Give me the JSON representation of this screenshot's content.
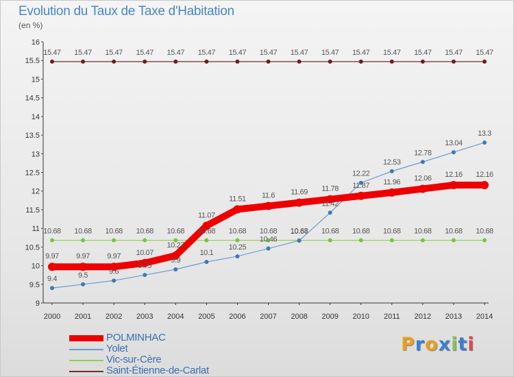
{
  "title": "Evolution du Taux de Taxe d'Habitation",
  "subtitle": "(en %)",
  "logo": "Proxiti",
  "colors": {
    "title": "#4a86c5",
    "polminhac": "#ee0000",
    "yolet": "#6b9ccc",
    "vic": "#8fd14f",
    "saint": "#7a2b2b",
    "label": "#555555"
  },
  "chart_data": {
    "type": "line",
    "title": "Evolution du Taux de Taxe d'Habitation",
    "ylabel": "(en %)",
    "xlabel": "",
    "x": [
      "2000",
      "2001",
      "2002",
      "2003",
      "2004",
      "2005",
      "2006",
      "2007",
      "2008",
      "2009",
      "2010",
      "2011",
      "2012",
      "2013",
      "2014"
    ],
    "ylim": [
      9,
      16
    ],
    "yticks": [
      "9",
      "9.5",
      "10",
      "10.5",
      "11",
      "11.5",
      "12",
      "12.5",
      "13",
      "13.5",
      "14",
      "14.5",
      "15",
      "15.5",
      "16"
    ],
    "grid": false,
    "legend_position": "bottom-left",
    "series": [
      {
        "name": "POLMINHAC",
        "key": "polminhac",
        "values": [
          9.97,
          9.97,
          9.97,
          10.07,
          10.27,
          11.07,
          11.51,
          11.6,
          11.69,
          11.78,
          11.87,
          11.96,
          12.06,
          12.16,
          12.16
        ],
        "labels": [
          "9.97",
          "9.97",
          "9.97",
          "10.07",
          "10.27",
          "11.07",
          "11.51",
          "11.6",
          "11.69",
          "11.78",
          "11.87",
          "11.96",
          "12.06",
          "12.16",
          "12.16"
        ]
      },
      {
        "name": "Yolet",
        "key": "yolet",
        "values": [
          9.4,
          9.5,
          9.6,
          9.75,
          9.9,
          10.1,
          10.25,
          10.46,
          10.67,
          11.42,
          12.22,
          12.53,
          12.78,
          13.04,
          13.3
        ],
        "labels": [
          "9.4",
          "9.5",
          "9.6",
          "9.75",
          "9.9",
          "10.1",
          "10.25",
          "10.46",
          "10.67",
          "11.42",
          "12.22",
          "12.53",
          "12.78",
          "13.04",
          "13.3"
        ]
      },
      {
        "name": "Vic-sur-Cère",
        "key": "vic",
        "values": [
          10.68,
          10.68,
          10.68,
          10.68,
          10.68,
          10.68,
          10.68,
          10.68,
          10.68,
          10.68,
          10.68,
          10.68,
          10.68,
          10.68,
          10.68
        ],
        "labels": [
          "10.68",
          "10.68",
          "10.68",
          "10.68",
          "10.68",
          "10.68",
          "10.68",
          "10.68",
          "10.68",
          "10.68",
          "10.68",
          "10.68",
          "10.68",
          "10.68",
          "10.68"
        ]
      },
      {
        "name": "Saint-Étienne-de-Carlat",
        "key": "saint",
        "values": [
          15.47,
          15.47,
          15.47,
          15.47,
          15.47,
          15.47,
          15.47,
          15.47,
          15.47,
          15.47,
          15.47,
          15.47,
          15.47,
          15.47,
          15.47
        ],
        "labels": [
          "15.47",
          "15.47",
          "15.47",
          "15.47",
          "15.47",
          "15.47",
          "15.47",
          "15.47",
          "15.47",
          "15.47",
          "15.47",
          "15.47",
          "15.47",
          "15.47",
          "15.47"
        ]
      }
    ]
  }
}
